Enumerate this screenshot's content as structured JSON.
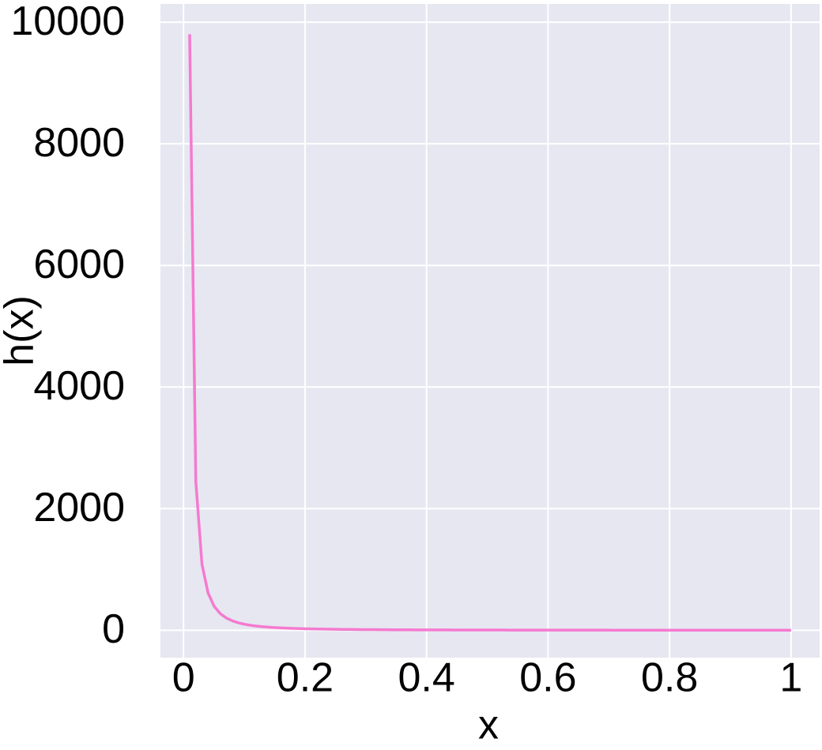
{
  "chart_data": {
    "type": "line",
    "xlabel": "x",
    "ylabel": "h(x)",
    "x": [
      0.0101,
      0.0202,
      0.0303,
      0.0404,
      0.0505,
      0.0606,
      0.0707,
      0.0808,
      0.0909,
      0.101,
      0.1111,
      0.1212,
      0.1313,
      0.1414,
      0.1515,
      0.1616,
      0.1717,
      0.1818,
      0.1919,
      0.202,
      0.2121,
      0.2222,
      0.2323,
      0.2424,
      0.2525,
      0.2626,
      0.2727,
      0.2828,
      0.2929,
      0.303,
      0.3131,
      0.3232,
      0.3333,
      0.3434,
      0.3535,
      0.3636,
      0.3737,
      0.3838,
      0.3939,
      0.404,
      0.4141,
      0.4242,
      0.4343,
      0.4444,
      0.4545,
      0.4646,
      0.4747,
      0.4848,
      0.4949,
      0.5051,
      0.5152,
      0.5253,
      0.5354,
      0.5455,
      0.5556,
      0.5657,
      0.5758,
      0.5859,
      0.596,
      0.6061,
      0.6162,
      0.6263,
      0.6364,
      0.6465,
      0.6566,
      0.6667,
      0.6768,
      0.6869,
      0.697,
      0.7071,
      0.7172,
      0.7273,
      0.7374,
      0.7475,
      0.7576,
      0.7677,
      0.7778,
      0.7879,
      0.798,
      0.8081,
      0.8182,
      0.8283,
      0.8384,
      0.8485,
      0.8586,
      0.8687,
      0.8788,
      0.8889,
      0.899,
      0.9091,
      0.9192,
      0.9293,
      0.9394,
      0.9495,
      0.9596,
      0.9697,
      0.9798,
      0.9899,
      1
    ],
    "series": [
      {
        "color": "#f57acf",
        "values": [
          9801,
          2450.25,
          1089,
          612.56,
          392.04,
          272.25,
          200.02,
          153.14,
          121,
          98.01,
          81,
          68.06,
          57.99,
          50.01,
          43.56,
          38.29,
          33.91,
          30.25,
          27.15,
          24.5,
          22.22,
          20.25,
          18.53,
          17.02,
          15.68,
          14.5,
          13.44,
          12.5,
          11.65,
          10.89,
          10.2,
          9.57,
          9,
          8.48,
          8,
          7.56,
          7.16,
          6.79,
          6.44,
          6.13,
          5.83,
          5.56,
          5.3,
          5.06,
          4.84,
          4.63,
          4.44,
          4.25,
          4.08,
          3.92,
          3.77,
          3.62,
          3.49,
          3.36,
          3.24,
          3.13,
          3.02,
          2.91,
          2.82,
          2.72,
          2.63,
          2.55,
          2.47,
          2.39,
          2.32,
          2.25,
          2.18,
          2.12,
          2.06,
          2,
          1.94,
          1.89,
          1.84,
          1.79,
          1.74,
          1.7,
          1.65,
          1.61,
          1.57,
          1.53,
          1.49,
          1.46,
          1.42,
          1.39,
          1.36,
          1.33,
          1.29,
          1.27,
          1.24,
          1.21,
          1.18,
          1.16,
          1.13,
          1.11,
          1.09,
          1.06,
          1.04,
          1.02,
          1
        ]
      }
    ],
    "xlim": [
      -0.038,
      1.047
    ],
    "ylim": [
      -450,
      10300
    ],
    "xticks": [
      0,
      0.2,
      0.4,
      0.6,
      0.8,
      1
    ],
    "yticks": [
      0,
      2000,
      4000,
      6000,
      8000,
      10000
    ],
    "grid": true,
    "background": "#e6e7f1"
  }
}
